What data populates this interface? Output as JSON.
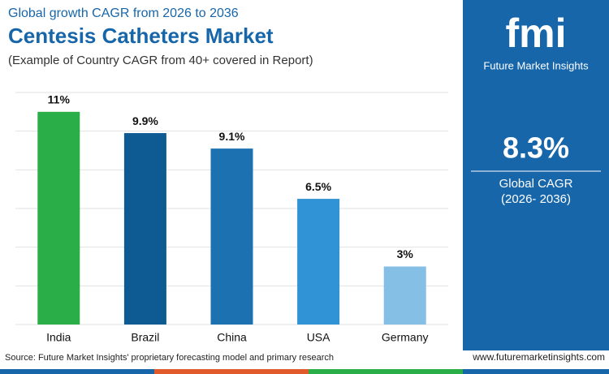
{
  "chart_data": {
    "type": "bar",
    "subtitle_top": "Global growth CAGR from 2026 to 2036",
    "title": "Centesis Catheters Market",
    "subtitle": "(Example of Country CAGR from 40+ covered in Report)",
    "categories": [
      "India",
      "Brazil",
      "China",
      "USA",
      "Germany"
    ],
    "values": [
      11,
      9.9,
      9.1,
      6.5,
      3
    ],
    "value_labels": [
      "11%",
      "9.9%",
      "9.1%",
      "6.5%",
      "3%"
    ],
    "colors": [
      "#2aae48",
      "#0e5a92",
      "#1c72b1",
      "#2f93d6",
      "#86bfe6"
    ],
    "ylim": [
      0,
      12
    ],
    "yticks": [
      0,
      2,
      4,
      6,
      8,
      10,
      12
    ],
    "grid": true,
    "source": "Source: Future Market Insights' proprietary forecasting model and primary research"
  },
  "sidebar": {
    "logo": "fmi",
    "brand": "Future Market Insights",
    "cagr": "8.3%",
    "cagr_label": "Global CAGR",
    "cagr_period": "(2026- 2036)",
    "url": "www.futuremarketinsights.com"
  }
}
